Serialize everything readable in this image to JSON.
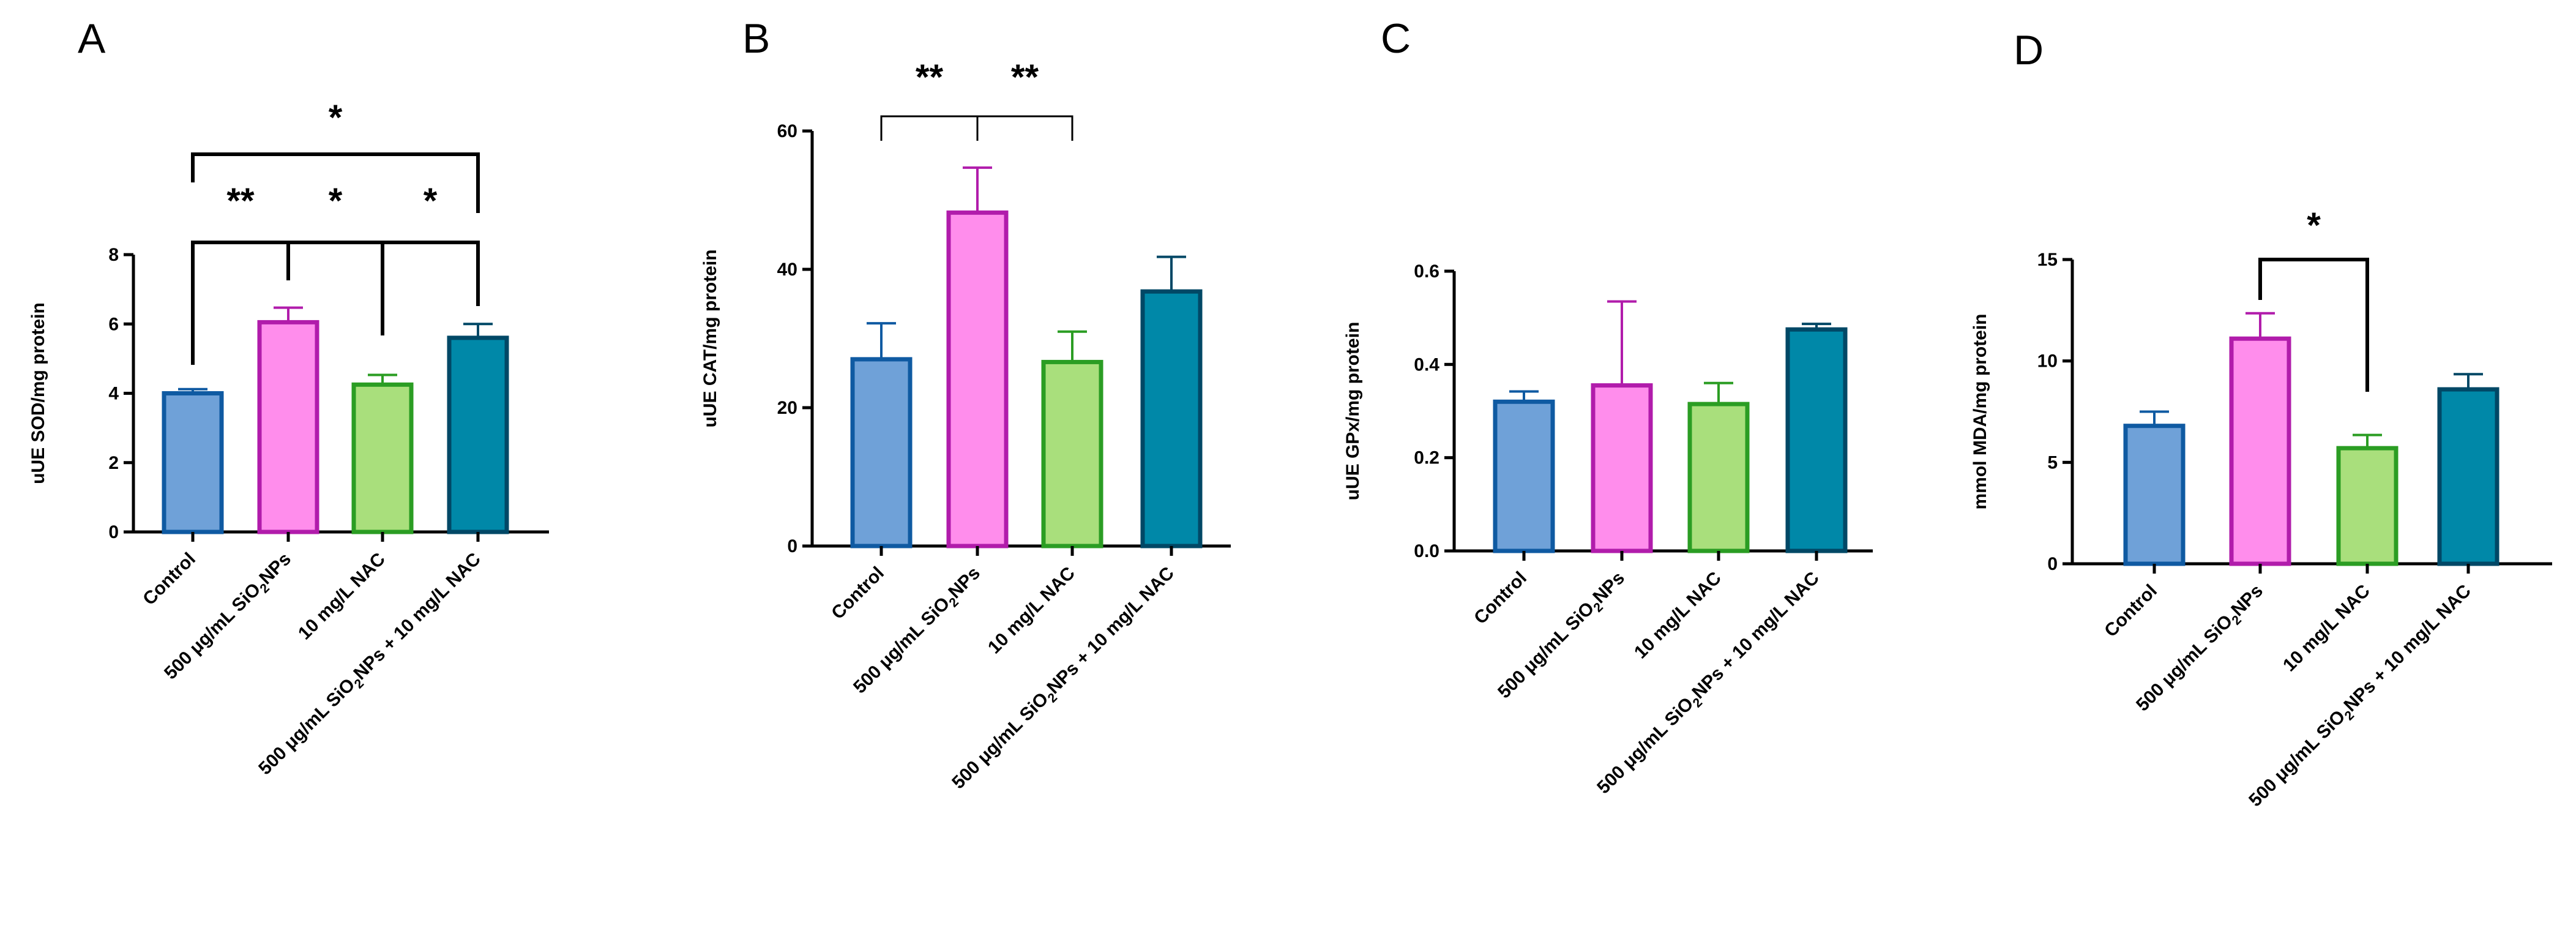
{
  "chart_data": [
    {
      "panel": "A",
      "type": "bar",
      "ylabel": "uUE SOD/mg protein",
      "ylim": [
        0,
        8
      ],
      "yticks": [
        0,
        2,
        4,
        6,
        8
      ],
      "categories": [
        "Control",
        "500 μg/mL SiO2NPs",
        "10 mg/L NAC",
        "500 μg/mL SiO2NPs + 10 mg/L NAC"
      ],
      "values": [
        4.0,
        6.05,
        4.25,
        5.6
      ],
      "errors": [
        0.12,
        0.42,
        0.28,
        0.4
      ],
      "significance": [
        {
          "from": 0,
          "to": 1,
          "label": "**"
        },
        {
          "from": 1,
          "to": 2,
          "label": "*"
        },
        {
          "from": 2,
          "to": 3,
          "label": "*"
        },
        {
          "from": 0,
          "to": 3,
          "label": "*"
        }
      ]
    },
    {
      "panel": "B",
      "type": "bar",
      "ylabel": "uUE CAT/mg protein",
      "ylim": [
        0,
        60
      ],
      "yticks": [
        0,
        20,
        40,
        60
      ],
      "categories": [
        "Control",
        "500 μg/mL SiO2NPs",
        "10 mg/L NAC",
        "500 μg/mL SiO2NPs + 10 mg/L NAC"
      ],
      "values": [
        27,
        48.2,
        26.6,
        36.8
      ],
      "errors": [
        5.2,
        6.5,
        4.4,
        5.0
      ],
      "significance": [
        {
          "from": 0,
          "to": 1,
          "label": "**"
        },
        {
          "from": 1,
          "to": 2,
          "label": "**"
        }
      ]
    },
    {
      "panel": "C",
      "type": "bar",
      "ylabel": "uUE GPx/mg protein",
      "ylim": [
        0,
        0.6
      ],
      "yticks": [
        "0.0",
        "0.2",
        "0.4",
        "0.6"
      ],
      "categories": [
        "Control",
        "500 μg/mL SiO2NPs",
        "10 mg/L NAC",
        "500 μg/mL SiO2NPs + 10 mg/L NAC"
      ],
      "values": [
        0.32,
        0.355,
        0.315,
        0.475
      ],
      "errors": [
        0.022,
        0.18,
        0.045,
        0.012
      ],
      "significance": []
    },
    {
      "panel": "D",
      "type": "bar",
      "ylabel": "mmol MDA/mg protein",
      "ylim": [
        0,
        15
      ],
      "yticks": [
        0,
        5,
        10,
        15
      ],
      "categories": [
        "Control",
        "500 μg/mL SiO2NPs",
        "10 mg/L NAC",
        "500 μg/mL SiO2NPs + 10 mg/L NAC"
      ],
      "values": [
        6.8,
        11.1,
        5.7,
        8.6
      ],
      "errors": [
        0.7,
        1.25,
        0.65,
        0.75
      ],
      "significance": [
        {
          "from": 1,
          "to": 2,
          "label": "*"
        }
      ]
    }
  ],
  "colors": {
    "fills": [
      "#6fa1d8",
      "#ff8dec",
      "#a9df7c",
      "#0088a8"
    ],
    "strokes": [
      "#0f5aa2",
      "#b11cab",
      "#2b9d23",
      "#014866"
    ]
  }
}
